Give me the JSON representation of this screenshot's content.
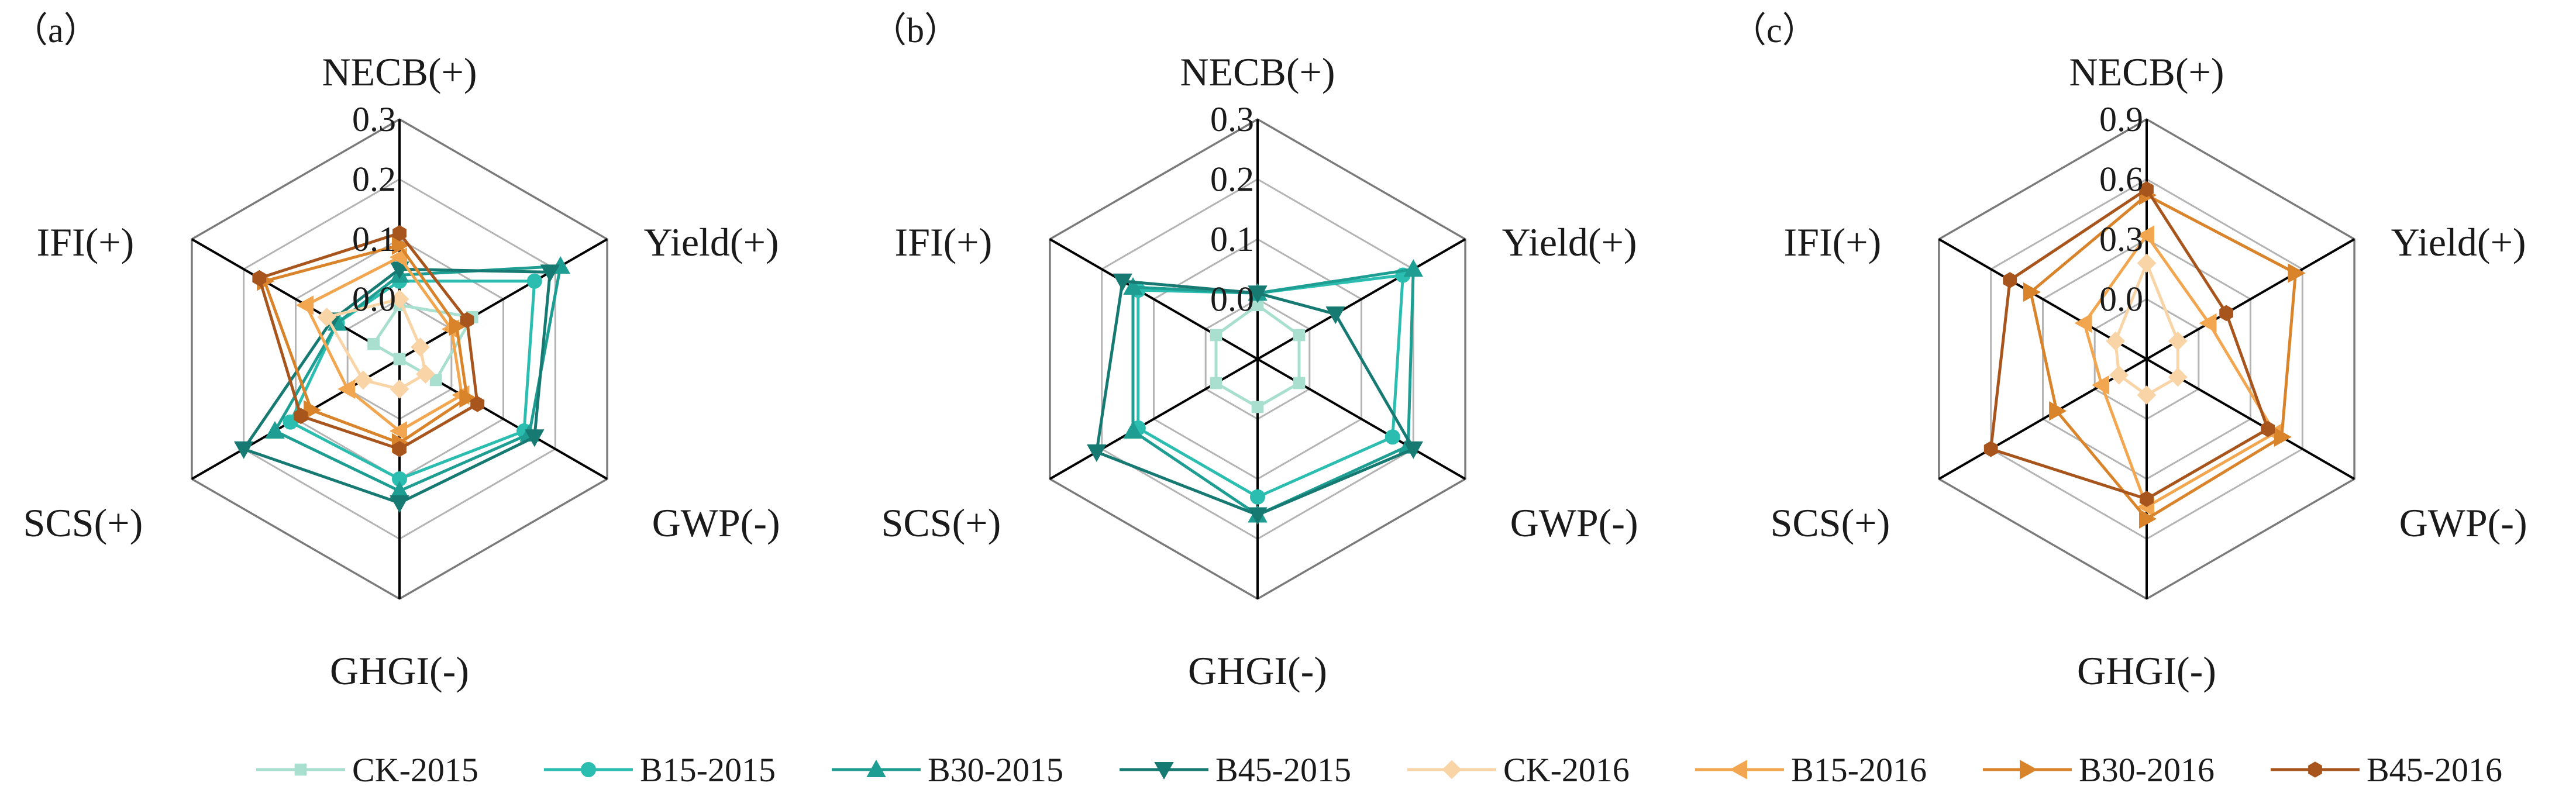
{
  "chart_data": [
    {
      "type": "radar",
      "panel_label": "（a）",
      "axes": [
        "NECB(+)",
        "Yield(+)",
        "GWP(-)",
        "GHGI(-)",
        "SCS(+)",
        "IFI(+)"
      ],
      "ticks": [
        0.0,
        0.1,
        0.2,
        0.3
      ],
      "tick_labels": [
        "0.0",
        "0.1",
        "0.2",
        "0.3"
      ],
      "range": [
        -0.1,
        0.3
      ],
      "series": [
        {
          "name": "CK-2015",
          "values": [
            -0.01,
            0.04,
            -0.03,
            -0.1,
            -0.1,
            -0.05
          ]
        },
        {
          "name": "B15-2015",
          "values": [
            0.03,
            0.16,
            0.14,
            0.1,
            0.11,
            0.02
          ]
        },
        {
          "name": "B30-2015",
          "values": [
            0.04,
            0.21,
            0.15,
            0.12,
            0.14,
            0.02
          ]
        },
        {
          "name": "B45-2015",
          "values": [
            0.05,
            0.19,
            0.16,
            0.14,
            0.2,
            0.03
          ]
        },
        {
          "name": "CK-2016",
          "values": [
            0.0,
            -0.06,
            -0.05,
            -0.05,
            -0.03,
            0.04
          ]
        },
        {
          "name": "B15-2016",
          "values": [
            0.07,
            0.0,
            0.02,
            0.02,
            0.0,
            0.08
          ]
        },
        {
          "name": "B30-2016",
          "values": [
            0.09,
            0.01,
            0.03,
            0.04,
            0.07,
            0.16
          ]
        },
        {
          "name": "B45-2016",
          "values": [
            0.11,
            0.03,
            0.05,
            0.05,
            0.09,
            0.17
          ]
        }
      ]
    },
    {
      "type": "radar",
      "panel_label": "（b）",
      "axes": [
        "NECB(+)",
        "Yield(+)",
        "GWP(-)",
        "GHGI(-)",
        "SCS(+)",
        "IFI(+)"
      ],
      "ticks": [
        0.0,
        0.1,
        0.2,
        0.3
      ],
      "tick_labels": [
        "0.0",
        "0.1",
        "0.2",
        "0.3"
      ],
      "range": [
        -0.1,
        0.3
      ],
      "series": [
        {
          "name": "CK-2015",
          "values": [
            -0.01,
            -0.02,
            -0.02,
            -0.02,
            -0.02,
            -0.02
          ]
        },
        {
          "name": "B15-2015",
          "values": [
            0.01,
            0.18,
            0.16,
            0.13,
            0.13,
            0.13
          ]
        },
        {
          "name": "B30-2015",
          "values": [
            0.01,
            0.2,
            0.19,
            0.16,
            0.14,
            0.14
          ]
        },
        {
          "name": "B45-2015",
          "values": [
            0.01,
            0.05,
            0.2,
            0.16,
            0.21,
            0.16
          ]
        }
      ]
    },
    {
      "type": "radar",
      "panel_label": "（c）",
      "axes": [
        "NECB(+)",
        "Yield(+)",
        "GWP(-)",
        "GHGI(-)",
        "SCS(+)",
        "IFI(+)"
      ],
      "ticks": [
        0.0,
        0.3,
        0.6,
        0.9
      ],
      "tick_labels": [
        "0.0",
        "0.3",
        "0.6",
        "0.9"
      ],
      "range": [
        -0.3,
        0.9
      ],
      "series": [
        {
          "name": "CK-2016",
          "values": [
            0.18,
            -0.12,
            -0.12,
            -0.12,
            -0.14,
            -0.12
          ]
        },
        {
          "name": "B15-2016",
          "values": [
            0.32,
            0.06,
            0.44,
            0.44,
            -0.04,
            0.06
          ]
        },
        {
          "name": "B30-2016",
          "values": [
            0.52,
            0.56,
            0.48,
            0.5,
            0.22,
            0.37
          ]
        },
        {
          "name": "B45-2016",
          "values": [
            0.55,
            0.16,
            0.4,
            0.4,
            0.6,
            0.49
          ]
        }
      ]
    }
  ],
  "legend": [
    {
      "name": "CK-2015",
      "color": "#a8dfcf",
      "marker": "square"
    },
    {
      "name": "B15-2015",
      "color": "#2bbdb0",
      "marker": "circle"
    },
    {
      "name": "B30-2015",
      "color": "#1e9e92",
      "marker": "triangle-up"
    },
    {
      "name": "B45-2015",
      "color": "#167a73",
      "marker": "triangle-down"
    },
    {
      "name": "CK-2016",
      "color": "#f9d4a7",
      "marker": "diamond"
    },
    {
      "name": "B15-2016",
      "color": "#f2a650",
      "marker": "triangle-left"
    },
    {
      "name": "B30-2016",
      "color": "#d9832b",
      "marker": "triangle-right"
    },
    {
      "name": "B45-2016",
      "color": "#a7551d",
      "marker": "hexagon"
    }
  ]
}
